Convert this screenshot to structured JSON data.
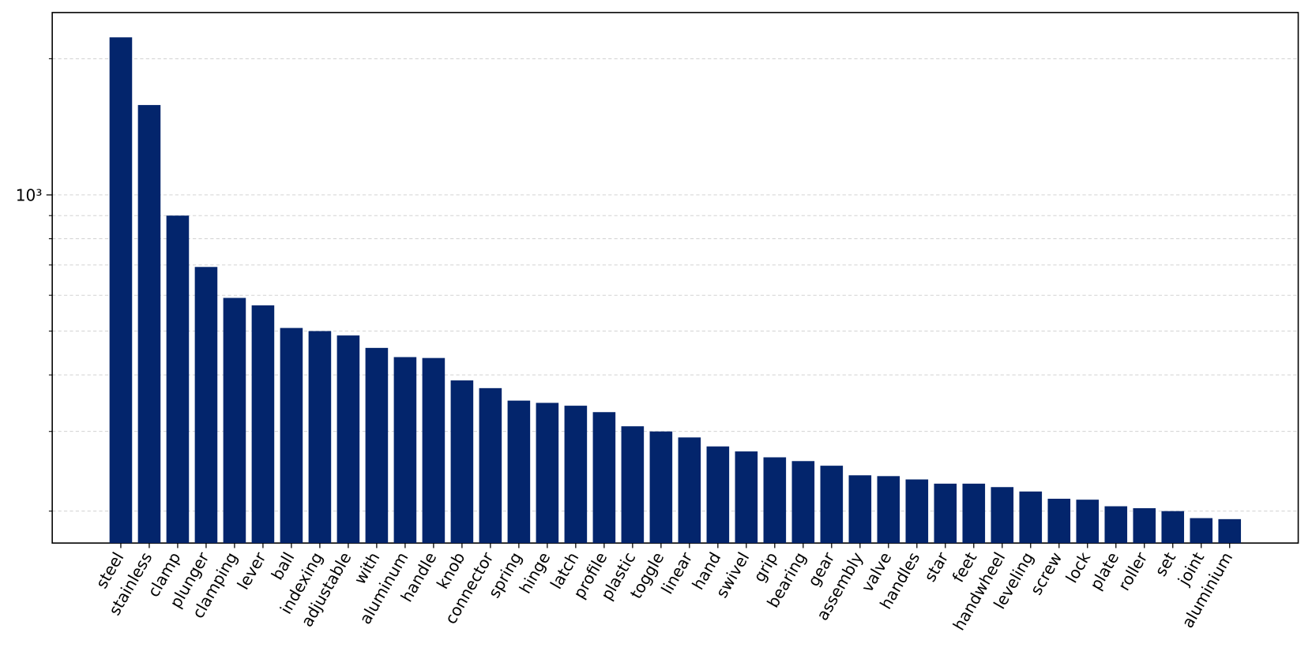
{
  "chart_data": {
    "type": "bar",
    "categories": [
      "steel",
      "stainless",
      "clamp",
      "plunger",
      "clamping",
      "lever",
      "ball",
      "indexing",
      "adjustable",
      "with",
      "aluminum",
      "handle",
      "knob",
      "connector",
      "spring",
      "hinge",
      "latch",
      "profile",
      "plastic",
      "toggle",
      "linear",
      "hand",
      "swivel",
      "grip",
      "bearing",
      "gear",
      "assembly",
      "valve",
      "handles",
      "star",
      "feet",
      "handwheel",
      "leveling",
      "screw",
      "lock",
      "plate",
      "roller",
      "set",
      "joint",
      "aluminium"
    ],
    "values": [
      2230,
      1580,
      900,
      693,
      592,
      570,
      508,
      500,
      489,
      459,
      438,
      436,
      389,
      374,
      351,
      347,
      342,
      331,
      308,
      300,
      291,
      278,
      271,
      263,
      258,
      252,
      240,
      239,
      235,
      230,
      230,
      226,
      221,
      213,
      212,
      205,
      203,
      200,
      193,
      192
    ],
    "color": "#03256c",
    "log_scale": true,
    "ylim": [
      170,
      2530
    ],
    "yticks": [
      {
        "value": 1000,
        "label": "10³"
      }
    ],
    "minor_yticks": [
      200,
      300,
      400,
      500,
      600,
      700,
      800,
      900,
      2000
    ],
    "grid": true
  }
}
